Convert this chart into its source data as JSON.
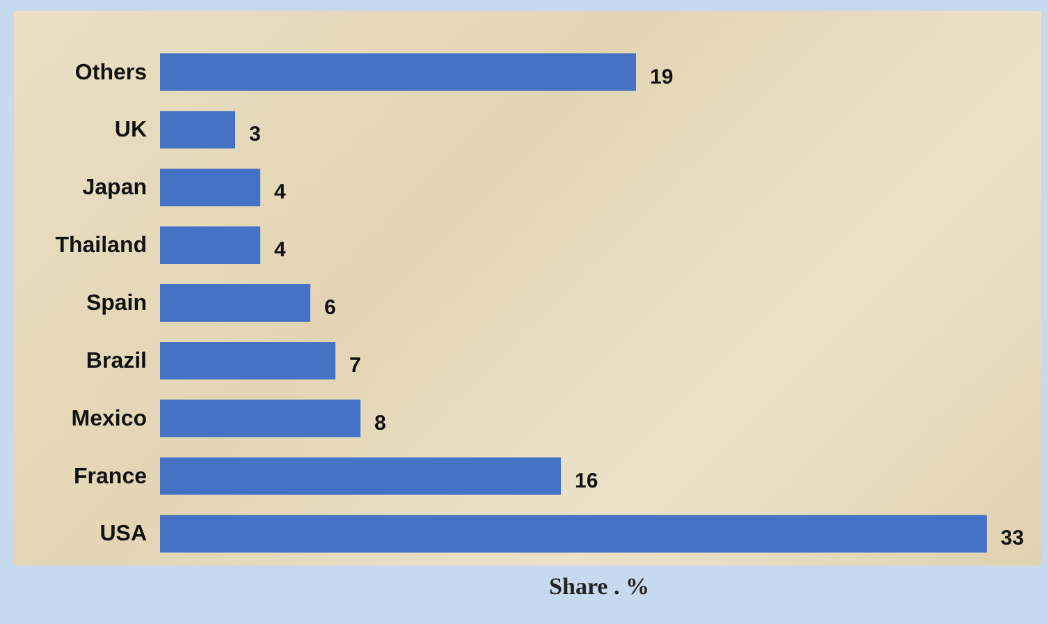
{
  "chart_data": {
    "type": "bar",
    "orientation": "horizontal",
    "xlabel": "Share . %",
    "categories": [
      "Others",
      "UK",
      "Japan",
      "Thailand",
      "Spain",
      "Brazil",
      "Mexico",
      "France",
      "USA"
    ],
    "values": [
      19,
      3,
      4,
      4,
      6,
      7,
      8,
      16,
      33
    ],
    "color": "#4472c4",
    "data_labels": true
  }
}
